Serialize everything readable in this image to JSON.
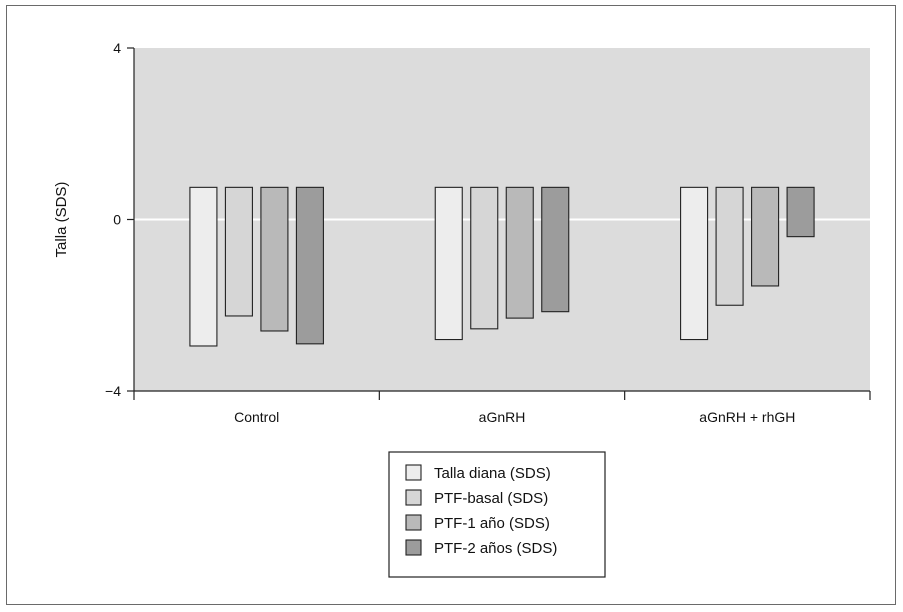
{
  "chart_data": {
    "type": "bar",
    "title": "",
    "xlabel": "",
    "ylabel": "Talla (SDS)",
    "ylim": [
      -4,
      4
    ],
    "yticks": [
      4,
      0,
      -4
    ],
    "grid": false,
    "zero_line": true,
    "legend_position": "bottom-center",
    "bar_top": 0.75,
    "categories": [
      "Control",
      "aGnRH",
      "aGnRH + rhGH"
    ],
    "series": [
      {
        "name": "Talla diana (SDS)",
        "color": "#ededed",
        "values": [
          -2.95,
          -2.8,
          -2.8
        ]
      },
      {
        "name": "PTF-basal (SDS)",
        "color": "#d6d6d6",
        "values": [
          -2.25,
          -2.55,
          -2.0
        ]
      },
      {
        "name": "PTF-1 año (SDS)",
        "color": "#b9b9b9",
        "values": [
          -2.6,
          -2.3,
          -1.55
        ]
      },
      {
        "name": "PTF-2 años (SDS)",
        "color": "#9c9c9c",
        "values": [
          -2.9,
          -2.15,
          -0.4
        ]
      }
    ],
    "colors": {
      "plot_background": "#dcdcdc",
      "border": "#222222",
      "zero_line": "#ffffff"
    }
  }
}
